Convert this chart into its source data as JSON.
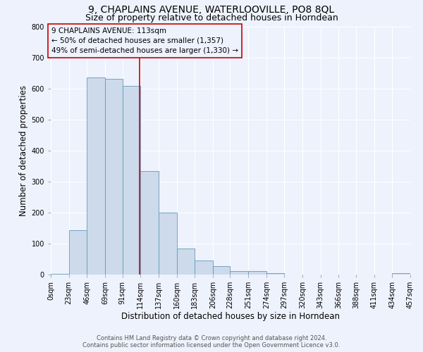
{
  "title": "9, CHAPLAINS AVENUE, WATERLOOVILLE, PO8 8QL",
  "subtitle": "Size of property relative to detached houses in Horndean",
  "xlabel": "Distribution of detached houses by size in Horndean",
  "ylabel": "Number of detached properties",
  "footer_line1": "Contains HM Land Registry data © Crown copyright and database right 2024.",
  "footer_line2": "Contains public sector information licensed under the Open Government Licence v3.0.",
  "annotation_title": "9 CHAPLAINS AVENUE: 113sqm",
  "annotation_line1": "← 50% of detached houses are smaller (1,357)",
  "annotation_line2": "49% of semi-detached houses are larger (1,330) →",
  "property_line_x": 113,
  "bin_edges": [
    0,
    23,
    46,
    69,
    91,
    114,
    137,
    160,
    183,
    206,
    228,
    251,
    274,
    297,
    320,
    343,
    366,
    388,
    411,
    434,
    457
  ],
  "bar_heights": [
    3,
    143,
    635,
    630,
    608,
    333,
    199,
    84,
    46,
    27,
    11,
    12,
    5,
    0,
    0,
    0,
    0,
    0,
    0,
    5
  ],
  "bar_color": "#ccdaeb",
  "bar_edge_color": "#6699bb",
  "vline_color": "#cc0000",
  "bg_color": "#eef2fc",
  "annotation_box_color": "#cc0000",
  "ylim": [
    0,
    800
  ],
  "yticks": [
    0,
    100,
    200,
    300,
    400,
    500,
    600,
    700,
    800
  ],
  "title_fontsize": 10,
  "subtitle_fontsize": 9,
  "xlabel_fontsize": 8.5,
  "ylabel_fontsize": 8.5,
  "tick_fontsize": 7,
  "annotation_fontsize": 7.5,
  "footer_fontsize": 6
}
